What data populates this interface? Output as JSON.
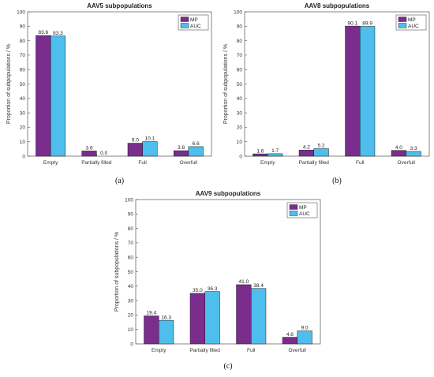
{
  "colors": {
    "mp": "#7B2D8E",
    "auc": "#4DBEEE"
  },
  "chart_data": [
    {
      "type": "bar",
      "title": "AAV5 subpopulations",
      "panel_label": "(a)",
      "ylabel": "Proportion of subpopulations / %",
      "ylim": [
        0,
        100
      ],
      "yticks": [
        0,
        10,
        20,
        30,
        40,
        50,
        60,
        70,
        80,
        90,
        100
      ],
      "categories": [
        "Empty",
        "Partially filled",
        "Full",
        "Overfull"
      ],
      "legend_position": "top-right",
      "series": [
        {
          "name": "MP",
          "values": [
            83.6,
            3.6,
            9.0,
            3.8
          ],
          "labels": [
            "83.6",
            "3.6",
            "9.0",
            "3.8"
          ]
        },
        {
          "name": "AUC",
          "values": [
            83.3,
            0.0,
            10.1,
            6.6
          ],
          "labels": [
            "83.3",
            "0.0",
            "10.1",
            "6.6"
          ]
        }
      ]
    },
    {
      "type": "bar",
      "title": "AAV8 subpopulations",
      "panel_label": "(b)",
      "ylabel": "Proportion of subpopulations / %",
      "ylim": [
        0,
        100
      ],
      "yticks": [
        0,
        10,
        20,
        30,
        40,
        50,
        60,
        70,
        80,
        90,
        100
      ],
      "categories": [
        "Empty",
        "Partially filled",
        "Full",
        "Overfull"
      ],
      "legend_position": "top-right",
      "series": [
        {
          "name": "MP",
          "values": [
            1.6,
            4.2,
            90.1,
            4.0
          ],
          "labels": [
            "1.6",
            "4.2",
            "90.1",
            "4.0"
          ]
        },
        {
          "name": "AUC",
          "values": [
            1.7,
            5.2,
            89.9,
            3.3
          ],
          "labels": [
            "1.7",
            "5.2",
            "89.9",
            "3.3"
          ]
        }
      ]
    },
    {
      "type": "bar",
      "title": "AAV9 subpopulations",
      "panel_label": "(c)",
      "ylabel": "Proportion of subpopulations / %",
      "ylim": [
        0,
        100
      ],
      "yticks": [
        0,
        10,
        20,
        30,
        40,
        50,
        60,
        70,
        80,
        90,
        100
      ],
      "categories": [
        "Empty",
        "Partially filled",
        "Full",
        "Overfull"
      ],
      "legend_position": "top-right",
      "series": [
        {
          "name": "MP",
          "values": [
            19.4,
            35.0,
            41.0,
            4.6
          ],
          "labels": [
            "19.4",
            "35.0",
            "41.0",
            "4.6"
          ]
        },
        {
          "name": "AUC",
          "values": [
            16.3,
            36.3,
            38.4,
            9.0
          ],
          "labels": [
            "16.3",
            "36.3",
            "38.4",
            "9.0"
          ]
        }
      ]
    }
  ]
}
